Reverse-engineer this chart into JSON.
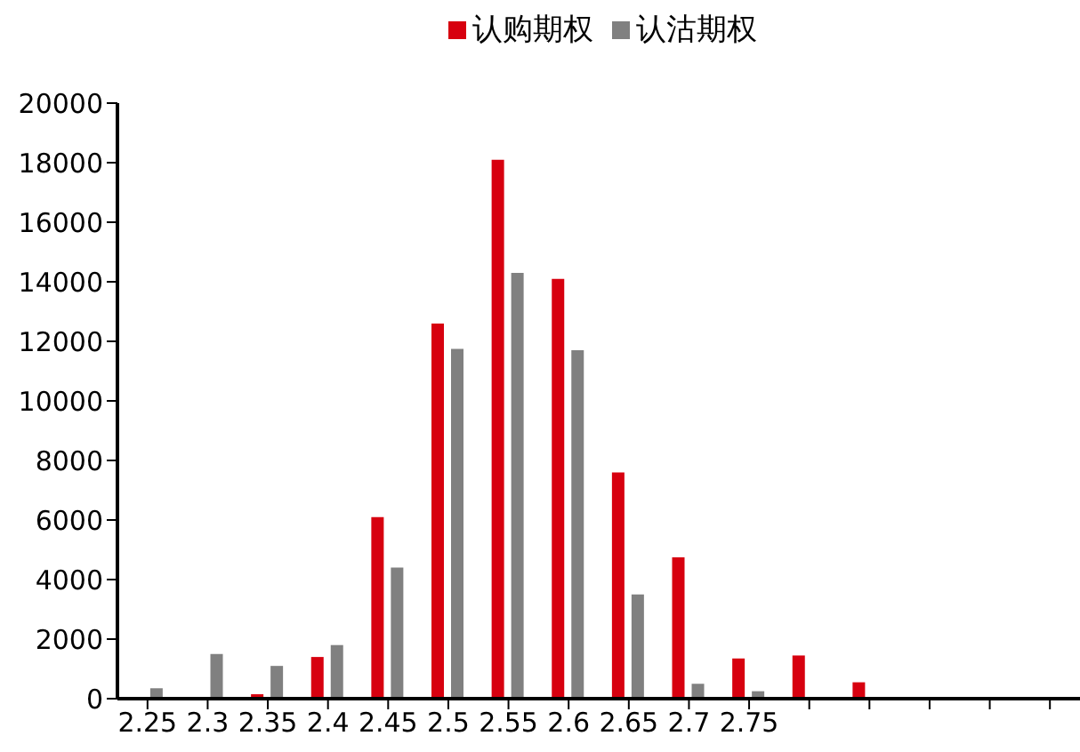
{
  "chart_data": {
    "type": "bar",
    "categories": [
      "2.25",
      "2.3",
      "2.35",
      "2.4",
      "2.45",
      "2.5",
      "2.55",
      "2.6",
      "2.65",
      "2.7",
      "2.75",
      null,
      null,
      null,
      null,
      null
    ],
    "series": [
      {
        "name": "认购期权",
        "color": "#d7000f",
        "values": [
          0,
          0,
          150,
          1400,
          6100,
          12600,
          18100,
          14100,
          7600,
          4750,
          1350,
          1450,
          550,
          0,
          0,
          0
        ]
      },
      {
        "name": "认沽期权",
        "color": "#808080",
        "values": [
          350,
          1500,
          1100,
          1800,
          4400,
          11750,
          14300,
          11700,
          3500,
          500,
          250,
          0,
          0,
          0,
          0,
          0
        ]
      }
    ],
    "ylim": [
      0,
      20000
    ],
    "yticks": [
      0,
      2000,
      4000,
      6000,
      8000,
      10000,
      12000,
      14000,
      16000,
      18000,
      20000
    ],
    "legend": "top"
  }
}
